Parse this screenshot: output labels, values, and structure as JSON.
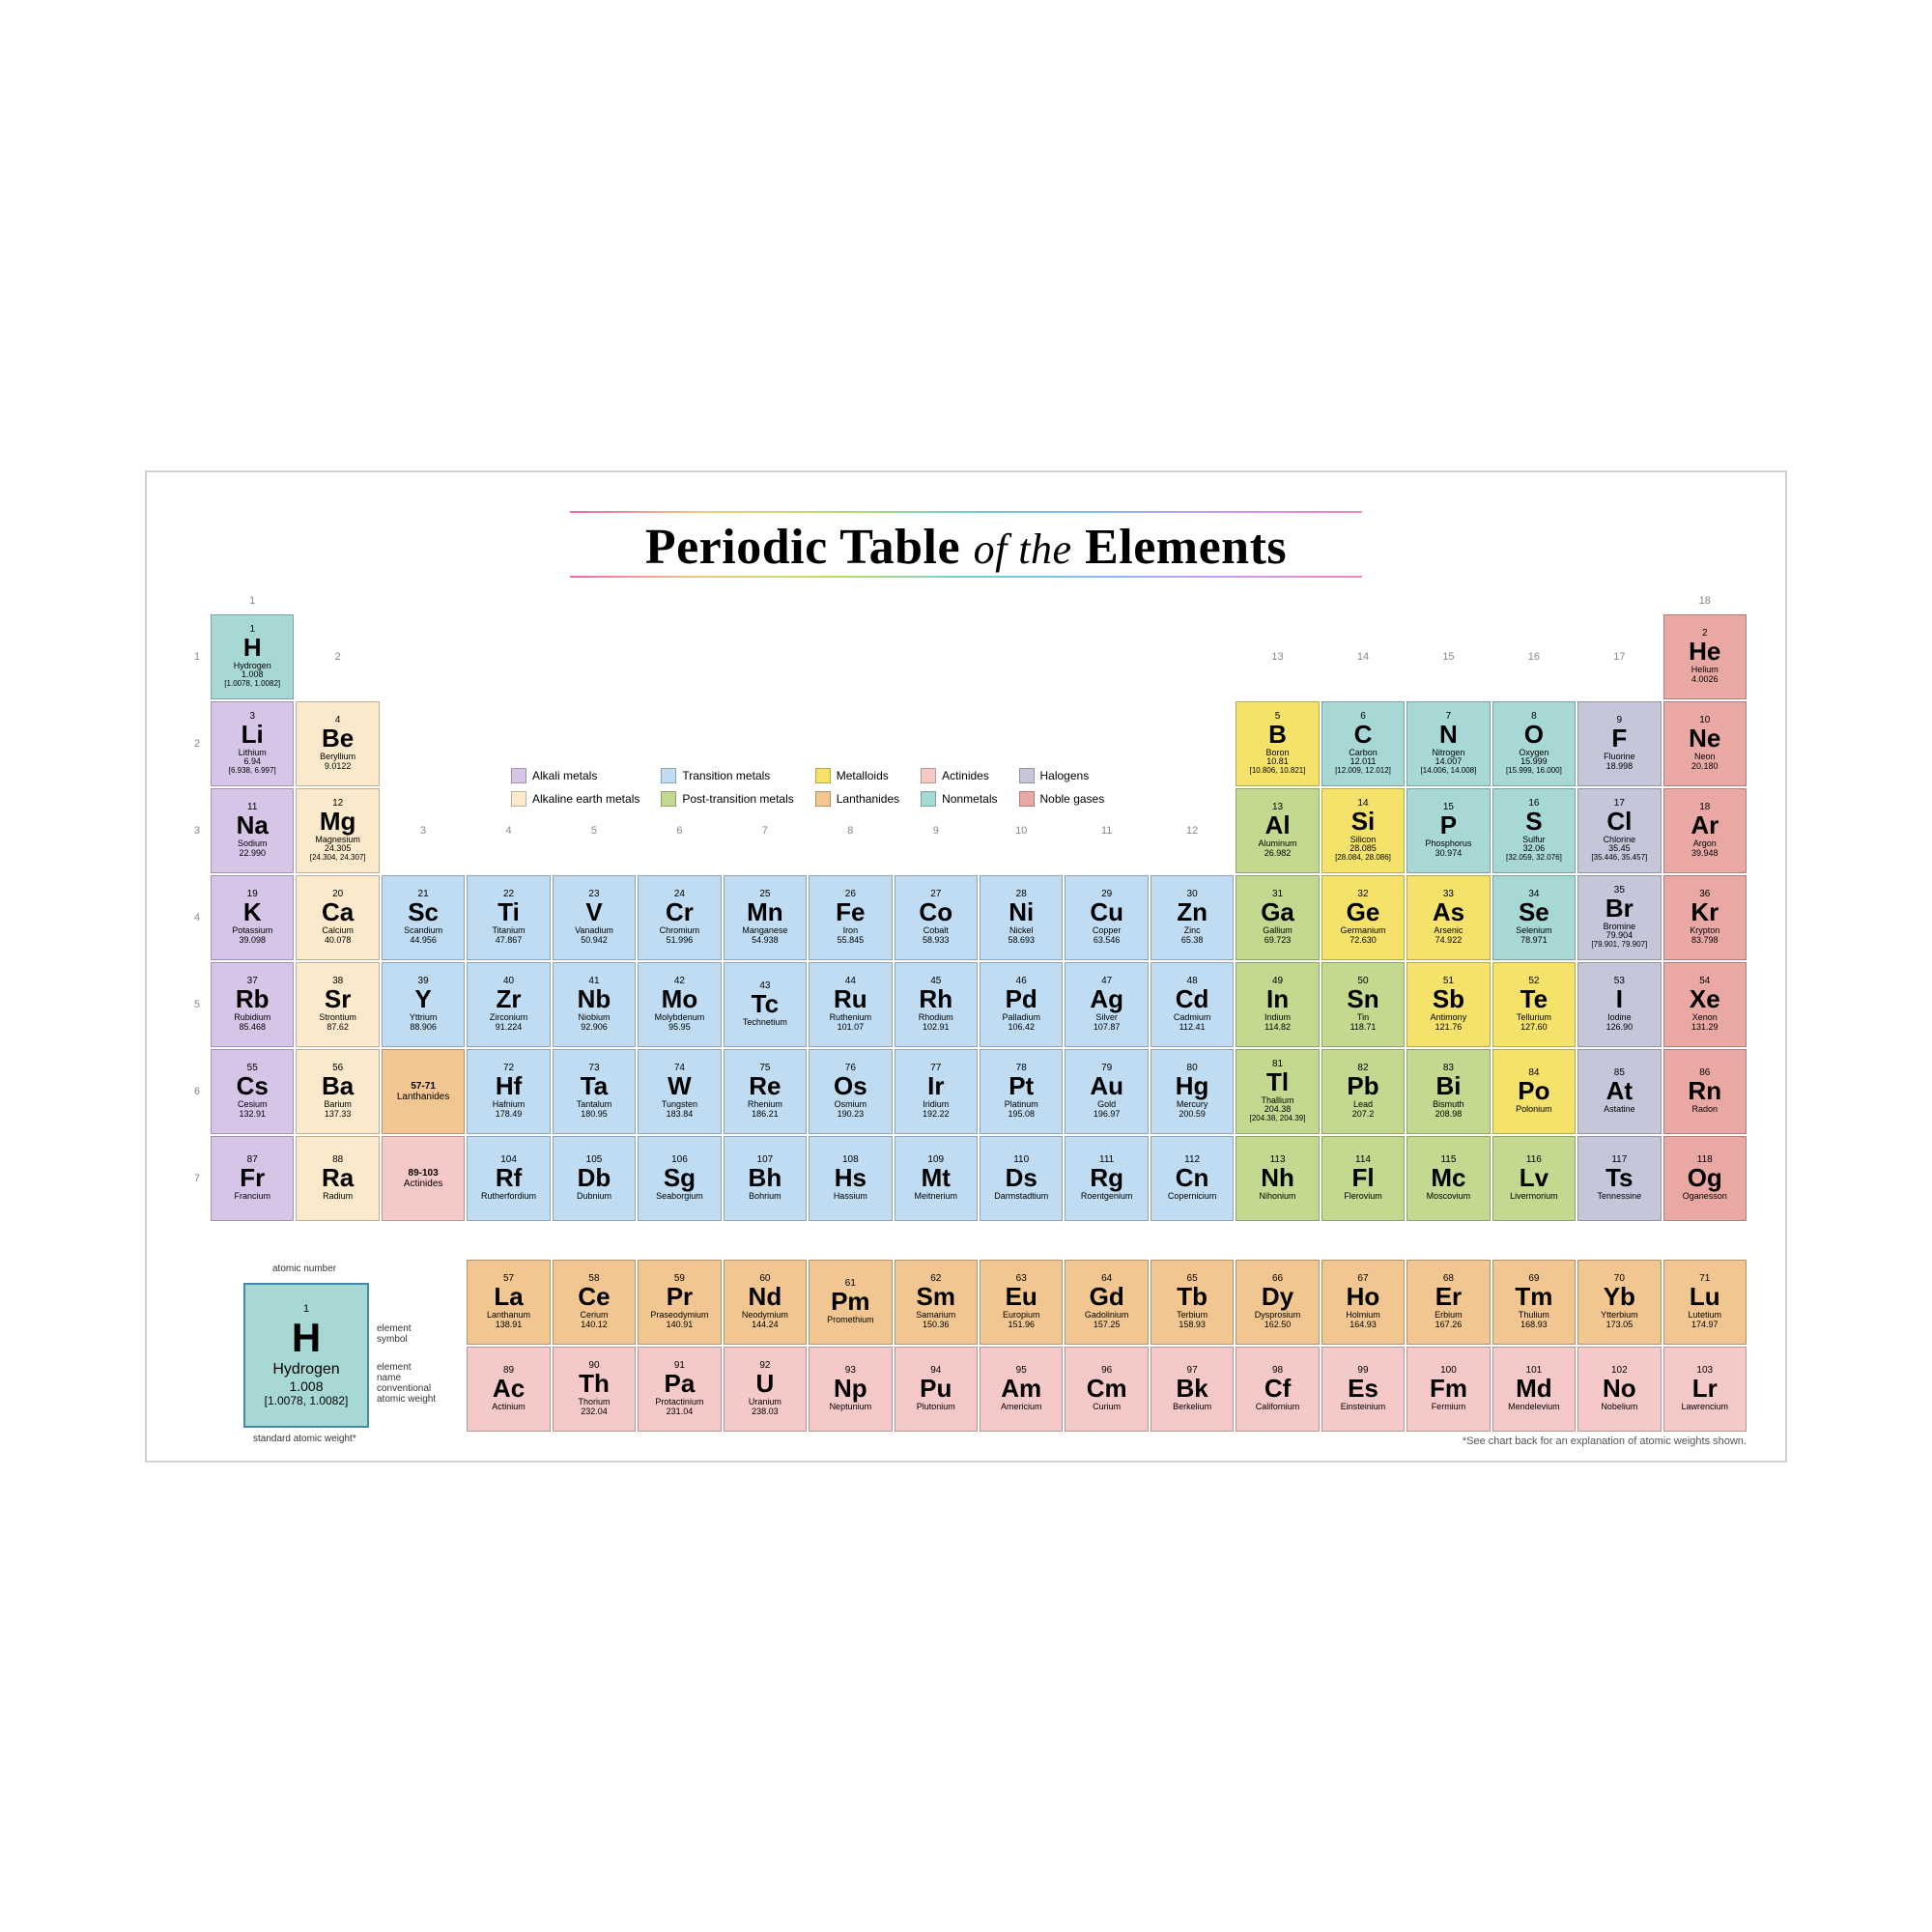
{
  "title": {
    "prefix": "Periodic Table",
    "mid": "of the",
    "suffix": "Elements"
  },
  "categories": {
    "alkali": {
      "label": "Alkali metals",
      "color": "#d7c5e8"
    },
    "alkaline": {
      "label": "Alkaline earth metals",
      "color": "#fbe9cb"
    },
    "transition": {
      "label": "Transition metals",
      "color": "#bfdcf2"
    },
    "post": {
      "label": "Post-transition metals",
      "color": "#c3d98f"
    },
    "metalloid": {
      "label": "Metalloids",
      "color": "#f5e26b"
    },
    "lanth": {
      "label": "Lanthanides",
      "color": "#f1c690"
    },
    "actin": {
      "label": "Actinides",
      "color": "#f5c9c7"
    },
    "nonmetal": {
      "label": "Nonmetals",
      "color": "#a8d8d6"
    },
    "halogen": {
      "label": "Halogens",
      "color": "#c6c6da"
    },
    "noble": {
      "label": "Noble gases",
      "color": "#eaa8a5"
    }
  },
  "legend_order": [
    "alkali",
    "transition",
    "metalloid",
    "actin",
    "halogen",
    "alkaline",
    "post",
    "lanth",
    "nonmetal",
    "noble"
  ],
  "columns": [
    1,
    2,
    3,
    4,
    5,
    6,
    7,
    8,
    9,
    10,
    11,
    12,
    13,
    14,
    15,
    16,
    17,
    18
  ],
  "rows": [
    1,
    2,
    3,
    4,
    5,
    6,
    7
  ],
  "placeholders": [
    {
      "row": 6,
      "col": 3,
      "range": "57-71",
      "label": "Lanthanides",
      "cat": "lanth"
    },
    {
      "row": 7,
      "col": 3,
      "range": "89-103",
      "label": "Actinides",
      "cat": "actin"
    }
  ],
  "key": {
    "title": "atomic number",
    "labels": {
      "num": "atomic number",
      "sym": "element symbol",
      "nm": "element name",
      "wt": "conventional atomic weight",
      "wt2": "standard atomic weight*"
    },
    "sample": {
      "num": "1",
      "sym": "H",
      "nm": "Hydrogen",
      "wt": "1.008",
      "wt2": "[1.0078, 1.0082]"
    }
  },
  "footer": "*See chart back for an explanation of atomic weights shown.",
  "elements": [
    {
      "n": 1,
      "s": "H",
      "nm": "Hydrogen",
      "w": "1.008",
      "w2": "[1.0078, 1.0082]",
      "r": 1,
      "c": 1,
      "cat": "nonmetal"
    },
    {
      "n": 2,
      "s": "He",
      "nm": "Helium",
      "w": "4.0026",
      "r": 1,
      "c": 18,
      "cat": "noble"
    },
    {
      "n": 3,
      "s": "Li",
      "nm": "Lithium",
      "w": "6.94",
      "w2": "[6.938, 6.997]",
      "r": 2,
      "c": 1,
      "cat": "alkali"
    },
    {
      "n": 4,
      "s": "Be",
      "nm": "Beryllium",
      "w": "9.0122",
      "r": 2,
      "c": 2,
      "cat": "alkaline"
    },
    {
      "n": 5,
      "s": "B",
      "nm": "Boron",
      "w": "10.81",
      "w2": "[10.806, 10.821]",
      "r": 2,
      "c": 13,
      "cat": "metalloid"
    },
    {
      "n": 6,
      "s": "C",
      "nm": "Carbon",
      "w": "12.011",
      "w2": "[12.009, 12.012]",
      "r": 2,
      "c": 14,
      "cat": "nonmetal"
    },
    {
      "n": 7,
      "s": "N",
      "nm": "Nitrogen",
      "w": "14.007",
      "w2": "[14.006, 14.008]",
      "r": 2,
      "c": 15,
      "cat": "nonmetal"
    },
    {
      "n": 8,
      "s": "O",
      "nm": "Oxygen",
      "w": "15.999",
      "w2": "[15.999, 16.000]",
      "r": 2,
      "c": 16,
      "cat": "nonmetal"
    },
    {
      "n": 9,
      "s": "F",
      "nm": "Fluorine",
      "w": "18.998",
      "r": 2,
      "c": 17,
      "cat": "halogen"
    },
    {
      "n": 10,
      "s": "Ne",
      "nm": "Neon",
      "w": "20.180",
      "r": 2,
      "c": 18,
      "cat": "noble"
    },
    {
      "n": 11,
      "s": "Na",
      "nm": "Sodium",
      "w": "22.990",
      "r": 3,
      "c": 1,
      "cat": "alkali"
    },
    {
      "n": 12,
      "s": "Mg",
      "nm": "Magnesium",
      "w": "24.305",
      "w2": "[24.304, 24.307]",
      "r": 3,
      "c": 2,
      "cat": "alkaline"
    },
    {
      "n": 13,
      "s": "Al",
      "nm": "Aluminum",
      "w": "26.982",
      "r": 3,
      "c": 13,
      "cat": "post"
    },
    {
      "n": 14,
      "s": "Si",
      "nm": "Silicon",
      "w": "28.085",
      "w2": "[28.084, 28.086]",
      "r": 3,
      "c": 14,
      "cat": "metalloid"
    },
    {
      "n": 15,
      "s": "P",
      "nm": "Phosphorus",
      "w": "30.974",
      "r": 3,
      "c": 15,
      "cat": "nonmetal"
    },
    {
      "n": 16,
      "s": "S",
      "nm": "Sulfur",
      "w": "32.06",
      "w2": "[32.059, 32.076]",
      "r": 3,
      "c": 16,
      "cat": "nonmetal"
    },
    {
      "n": 17,
      "s": "Cl",
      "nm": "Chlorine",
      "w": "35.45",
      "w2": "[35.446, 35.457]",
      "r": 3,
      "c": 17,
      "cat": "halogen"
    },
    {
      "n": 18,
      "s": "Ar",
      "nm": "Argon",
      "w": "39.948",
      "r": 3,
      "c": 18,
      "cat": "noble"
    },
    {
      "n": 19,
      "s": "K",
      "nm": "Potassium",
      "w": "39.098",
      "r": 4,
      "c": 1,
      "cat": "alkali"
    },
    {
      "n": 20,
      "s": "Ca",
      "nm": "Calcium",
      "w": "40.078",
      "r": 4,
      "c": 2,
      "cat": "alkaline"
    },
    {
      "n": 21,
      "s": "Sc",
      "nm": "Scandium",
      "w": "44.956",
      "r": 4,
      "c": 3,
      "cat": "transition"
    },
    {
      "n": 22,
      "s": "Ti",
      "nm": "Titanium",
      "w": "47.867",
      "r": 4,
      "c": 4,
      "cat": "transition"
    },
    {
      "n": 23,
      "s": "V",
      "nm": "Vanadium",
      "w": "50.942",
      "r": 4,
      "c": 5,
      "cat": "transition"
    },
    {
      "n": 24,
      "s": "Cr",
      "nm": "Chromium",
      "w": "51.996",
      "r": 4,
      "c": 6,
      "cat": "transition"
    },
    {
      "n": 25,
      "s": "Mn",
      "nm": "Manganese",
      "w": "54.938",
      "r": 4,
      "c": 7,
      "cat": "transition"
    },
    {
      "n": 26,
      "s": "Fe",
      "nm": "Iron",
      "w": "55.845",
      "r": 4,
      "c": 8,
      "cat": "transition"
    },
    {
      "n": 27,
      "s": "Co",
      "nm": "Cobalt",
      "w": "58.933",
      "r": 4,
      "c": 9,
      "cat": "transition"
    },
    {
      "n": 28,
      "s": "Ni",
      "nm": "Nickel",
      "w": "58.693",
      "r": 4,
      "c": 10,
      "cat": "transition"
    },
    {
      "n": 29,
      "s": "Cu",
      "nm": "Copper",
      "w": "63.546",
      "r": 4,
      "c": 11,
      "cat": "transition"
    },
    {
      "n": 30,
      "s": "Zn",
      "nm": "Zinc",
      "w": "65.38",
      "r": 4,
      "c": 12,
      "cat": "transition"
    },
    {
      "n": 31,
      "s": "Ga",
      "nm": "Gallium",
      "w": "69.723",
      "r": 4,
      "c": 13,
      "cat": "post"
    },
    {
      "n": 32,
      "s": "Ge",
      "nm": "Germanium",
      "w": "72.630",
      "r": 4,
      "c": 14,
      "cat": "metalloid"
    },
    {
      "n": 33,
      "s": "As",
      "nm": "Arsenic",
      "w": "74.922",
      "r": 4,
      "c": 15,
      "cat": "metalloid"
    },
    {
      "n": 34,
      "s": "Se",
      "nm": "Selenium",
      "w": "78.971",
      "r": 4,
      "c": 16,
      "cat": "nonmetal"
    },
    {
      "n": 35,
      "s": "Br",
      "nm": "Bromine",
      "w": "79.904",
      "w2": "[79.901, 79.907]",
      "r": 4,
      "c": 17,
      "cat": "halogen"
    },
    {
      "n": 36,
      "s": "Kr",
      "nm": "Krypton",
      "w": "83.798",
      "r": 4,
      "c": 18,
      "cat": "noble"
    },
    {
      "n": 37,
      "s": "Rb",
      "nm": "Rubidium",
      "w": "85.468",
      "r": 5,
      "c": 1,
      "cat": "alkali"
    },
    {
      "n": 38,
      "s": "Sr",
      "nm": "Strontium",
      "w": "87.62",
      "r": 5,
      "c": 2,
      "cat": "alkaline"
    },
    {
      "n": 39,
      "s": "Y",
      "nm": "Yttrium",
      "w": "88.906",
      "r": 5,
      "c": 3,
      "cat": "transition"
    },
    {
      "n": 40,
      "s": "Zr",
      "nm": "Zirconium",
      "w": "91.224",
      "r": 5,
      "c": 4,
      "cat": "transition"
    },
    {
      "n": 41,
      "s": "Nb",
      "nm": "Niobium",
      "w": "92.906",
      "r": 5,
      "c": 5,
      "cat": "transition"
    },
    {
      "n": 42,
      "s": "Mo",
      "nm": "Molybdenum",
      "w": "95.95",
      "r": 5,
      "c": 6,
      "cat": "transition"
    },
    {
      "n": 43,
      "s": "Tc",
      "nm": "Technetium",
      "w": "",
      "r": 5,
      "c": 7,
      "cat": "transition"
    },
    {
      "n": 44,
      "s": "Ru",
      "nm": "Ruthenium",
      "w": "101.07",
      "r": 5,
      "c": 8,
      "cat": "transition"
    },
    {
      "n": 45,
      "s": "Rh",
      "nm": "Rhodium",
      "w": "102.91",
      "r": 5,
      "c": 9,
      "cat": "transition"
    },
    {
      "n": 46,
      "s": "Pd",
      "nm": "Palladium",
      "w": "106.42",
      "r": 5,
      "c": 10,
      "cat": "transition"
    },
    {
      "n": 47,
      "s": "Ag",
      "nm": "Silver",
      "w": "107.87",
      "r": 5,
      "c": 11,
      "cat": "transition"
    },
    {
      "n": 48,
      "s": "Cd",
      "nm": "Cadmium",
      "w": "112.41",
      "r": 5,
      "c": 12,
      "cat": "transition"
    },
    {
      "n": 49,
      "s": "In",
      "nm": "Indium",
      "w": "114.82",
      "r": 5,
      "c": 13,
      "cat": "post"
    },
    {
      "n": 50,
      "s": "Sn",
      "nm": "Tin",
      "w": "118.71",
      "r": 5,
      "c": 14,
      "cat": "post"
    },
    {
      "n": 51,
      "s": "Sb",
      "nm": "Antimony",
      "w": "121.76",
      "r": 5,
      "c": 15,
      "cat": "metalloid"
    },
    {
      "n": 52,
      "s": "Te",
      "nm": "Tellurium",
      "w": "127.60",
      "r": 5,
      "c": 16,
      "cat": "metalloid"
    },
    {
      "n": 53,
      "s": "I",
      "nm": "Iodine",
      "w": "126.90",
      "r": 5,
      "c": 17,
      "cat": "halogen"
    },
    {
      "n": 54,
      "s": "Xe",
      "nm": "Xenon",
      "w": "131.29",
      "r": 5,
      "c": 18,
      "cat": "noble"
    },
    {
      "n": 55,
      "s": "Cs",
      "nm": "Cesium",
      "w": "132.91",
      "r": 6,
      "c": 1,
      "cat": "alkali"
    },
    {
      "n": 56,
      "s": "Ba",
      "nm": "Barium",
      "w": "137.33",
      "r": 6,
      "c": 2,
      "cat": "alkaline"
    },
    {
      "n": 72,
      "s": "Hf",
      "nm": "Hafnium",
      "w": "178.49",
      "r": 6,
      "c": 4,
      "cat": "transition"
    },
    {
      "n": 73,
      "s": "Ta",
      "nm": "Tantalum",
      "w": "180.95",
      "r": 6,
      "c": 5,
      "cat": "transition"
    },
    {
      "n": 74,
      "s": "W",
      "nm": "Tungsten",
      "w": "183.84",
      "r": 6,
      "c": 6,
      "cat": "transition"
    },
    {
      "n": 75,
      "s": "Re",
      "nm": "Rhenium",
      "w": "186.21",
      "r": 6,
      "c": 7,
      "cat": "transition"
    },
    {
      "n": 76,
      "s": "Os",
      "nm": "Osmium",
      "w": "190.23",
      "r": 6,
      "c": 8,
      "cat": "transition"
    },
    {
      "n": 77,
      "s": "Ir",
      "nm": "Iridium",
      "w": "192.22",
      "r": 6,
      "c": 9,
      "cat": "transition"
    },
    {
      "n": 78,
      "s": "Pt",
      "nm": "Platinum",
      "w": "195.08",
      "r": 6,
      "c": 10,
      "cat": "transition"
    },
    {
      "n": 79,
      "s": "Au",
      "nm": "Gold",
      "w": "196.97",
      "r": 6,
      "c": 11,
      "cat": "transition"
    },
    {
      "n": 80,
      "s": "Hg",
      "nm": "Mercury",
      "w": "200.59",
      "r": 6,
      "c": 12,
      "cat": "transition"
    },
    {
      "n": 81,
      "s": "Tl",
      "nm": "Thallium",
      "w": "204.38",
      "w2": "[204.38, 204.39]",
      "r": 6,
      "c": 13,
      "cat": "post"
    },
    {
      "n": 82,
      "s": "Pb",
      "nm": "Lead",
      "w": "207.2",
      "r": 6,
      "c": 14,
      "cat": "post"
    },
    {
      "n": 83,
      "s": "Bi",
      "nm": "Bismuth",
      "w": "208.98",
      "r": 6,
      "c": 15,
      "cat": "post"
    },
    {
      "n": 84,
      "s": "Po",
      "nm": "Polonium",
      "w": "",
      "r": 6,
      "c": 16,
      "cat": "metalloid"
    },
    {
      "n": 85,
      "s": "At",
      "nm": "Astatine",
      "w": "",
      "r": 6,
      "c": 17,
      "cat": "halogen"
    },
    {
      "n": 86,
      "s": "Rn",
      "nm": "Radon",
      "w": "",
      "r": 6,
      "c": 18,
      "cat": "noble"
    },
    {
      "n": 87,
      "s": "Fr",
      "nm": "Francium",
      "w": "",
      "r": 7,
      "c": 1,
      "cat": "alkali"
    },
    {
      "n": 88,
      "s": "Ra",
      "nm": "Radium",
      "w": "",
      "r": 7,
      "c": 2,
      "cat": "alkaline"
    },
    {
      "n": 104,
      "s": "Rf",
      "nm": "Rutherfordium",
      "w": "",
      "r": 7,
      "c": 4,
      "cat": "transition"
    },
    {
      "n": 105,
      "s": "Db",
      "nm": "Dubnium",
      "w": "",
      "r": 7,
      "c": 5,
      "cat": "transition"
    },
    {
      "n": 106,
      "s": "Sg",
      "nm": "Seaborgium",
      "w": "",
      "r": 7,
      "c": 6,
      "cat": "transition"
    },
    {
      "n": 107,
      "s": "Bh",
      "nm": "Bohrium",
      "w": "",
      "r": 7,
      "c": 7,
      "cat": "transition"
    },
    {
      "n": 108,
      "s": "Hs",
      "nm": "Hassium",
      "w": "",
      "r": 7,
      "c": 8,
      "cat": "transition"
    },
    {
      "n": 109,
      "s": "Mt",
      "nm": "Meitnerium",
      "w": "",
      "r": 7,
      "c": 9,
      "cat": "transition"
    },
    {
      "n": 110,
      "s": "Ds",
      "nm": "Darmstadtium",
      "w": "",
      "r": 7,
      "c": 10,
      "cat": "transition"
    },
    {
      "n": 111,
      "s": "Rg",
      "nm": "Roentgenium",
      "w": "",
      "r": 7,
      "c": 11,
      "cat": "transition"
    },
    {
      "n": 112,
      "s": "Cn",
      "nm": "Copernicium",
      "w": "",
      "r": 7,
      "c": 12,
      "cat": "transition"
    },
    {
      "n": 113,
      "s": "Nh",
      "nm": "Nihonium",
      "w": "",
      "r": 7,
      "c": 13,
      "cat": "post"
    },
    {
      "n": 114,
      "s": "Fl",
      "nm": "Flerovium",
      "w": "",
      "r": 7,
      "c": 14,
      "cat": "post"
    },
    {
      "n": 115,
      "s": "Mc",
      "nm": "Moscovium",
      "w": "",
      "r": 7,
      "c": 15,
      "cat": "post"
    },
    {
      "n": 116,
      "s": "Lv",
      "nm": "Livermorium",
      "w": "",
      "r": 7,
      "c": 16,
      "cat": "post"
    },
    {
      "n": 117,
      "s": "Ts",
      "nm": "Tennessine",
      "w": "",
      "r": 7,
      "c": 17,
      "cat": "halogen"
    },
    {
      "n": 118,
      "s": "Og",
      "nm": "Oganesson",
      "w": "",
      "r": 7,
      "c": 18,
      "cat": "noble"
    },
    {
      "n": 57,
      "s": "La",
      "nm": "Lanthanum",
      "w": "138.91",
      "r": 9,
      "c": 4,
      "cat": "lanth"
    },
    {
      "n": 58,
      "s": "Ce",
      "nm": "Cerium",
      "w": "140.12",
      "r": 9,
      "c": 5,
      "cat": "lanth"
    },
    {
      "n": 59,
      "s": "Pr",
      "nm": "Praseodymium",
      "w": "140.91",
      "r": 9,
      "c": 6,
      "cat": "lanth"
    },
    {
      "n": 60,
      "s": "Nd",
      "nm": "Neodymium",
      "w": "144.24",
      "r": 9,
      "c": 7,
      "cat": "lanth"
    },
    {
      "n": 61,
      "s": "Pm",
      "nm": "Promethium",
      "w": "",
      "r": 9,
      "c": 8,
      "cat": "lanth"
    },
    {
      "n": 62,
      "s": "Sm",
      "nm": "Samarium",
      "w": "150.36",
      "r": 9,
      "c": 9,
      "cat": "lanth"
    },
    {
      "n": 63,
      "s": "Eu",
      "nm": "Europium",
      "w": "151.96",
      "r": 9,
      "c": 10,
      "cat": "lanth"
    },
    {
      "n": 64,
      "s": "Gd",
      "nm": "Gadolinium",
      "w": "157.25",
      "r": 9,
      "c": 11,
      "cat": "lanth"
    },
    {
      "n": 65,
      "s": "Tb",
      "nm": "Terbium",
      "w": "158.93",
      "r": 9,
      "c": 12,
      "cat": "lanth"
    },
    {
      "n": 66,
      "s": "Dy",
      "nm": "Dysprosium",
      "w": "162.50",
      "r": 9,
      "c": 13,
      "cat": "lanth"
    },
    {
      "n": 67,
      "s": "Ho",
      "nm": "Holmium",
      "w": "164.93",
      "r": 9,
      "c": 14,
      "cat": "lanth"
    },
    {
      "n": 68,
      "s": "Er",
      "nm": "Erbium",
      "w": "167.26",
      "r": 9,
      "c": 15,
      "cat": "lanth"
    },
    {
      "n": 69,
      "s": "Tm",
      "nm": "Thulium",
      "w": "168.93",
      "r": 9,
      "c": 16,
      "cat": "lanth"
    },
    {
      "n": 70,
      "s": "Yb",
      "nm": "Ytterbium",
      "w": "173.05",
      "r": 9,
      "c": 17,
      "cat": "lanth"
    },
    {
      "n": 71,
      "s": "Lu",
      "nm": "Lutetium",
      "w": "174.97",
      "r": 9,
      "c": 18,
      "cat": "lanth"
    },
    {
      "n": 89,
      "s": "Ac",
      "nm": "Actinium",
      "w": "",
      "r": 10,
      "c": 4,
      "cat": "actin"
    },
    {
      "n": 90,
      "s": "Th",
      "nm": "Thorium",
      "w": "232.04",
      "r": 10,
      "c": 5,
      "cat": "actin"
    },
    {
      "n": 91,
      "s": "Pa",
      "nm": "Protactinium",
      "w": "231.04",
      "r": 10,
      "c": 6,
      "cat": "actin"
    },
    {
      "n": 92,
      "s": "U",
      "nm": "Uranium",
      "w": "238.03",
      "r": 10,
      "c": 7,
      "cat": "actin"
    },
    {
      "n": 93,
      "s": "Np",
      "nm": "Neptunium",
      "w": "",
      "r": 10,
      "c": 8,
      "cat": "actin"
    },
    {
      "n": 94,
      "s": "Pu",
      "nm": "Plutonium",
      "w": "",
      "r": 10,
      "c": 9,
      "cat": "actin"
    },
    {
      "n": 95,
      "s": "Am",
      "nm": "Americium",
      "w": "",
      "r": 10,
      "c": 10,
      "cat": "actin"
    },
    {
      "n": 96,
      "s": "Cm",
      "nm": "Curium",
      "w": "",
      "r": 10,
      "c": 11,
      "cat": "actin"
    },
    {
      "n": 97,
      "s": "Bk",
      "nm": "Berkelium",
      "w": "",
      "r": 10,
      "c": 12,
      "cat": "actin"
    },
    {
      "n": 98,
      "s": "Cf",
      "nm": "Californium",
      "w": "",
      "r": 10,
      "c": 13,
      "cat": "actin"
    },
    {
      "n": 99,
      "s": "Es",
      "nm": "Einsteinium",
      "w": "",
      "r": 10,
      "c": 14,
      "cat": "actin"
    },
    {
      "n": 100,
      "s": "Fm",
      "nm": "Fermium",
      "w": "",
      "r": 10,
      "c": 15,
      "cat": "actin"
    },
    {
      "n": 101,
      "s": "Md",
      "nm": "Mendelevium",
      "w": "",
      "r": 10,
      "c": 16,
      "cat": "actin"
    },
    {
      "n": 102,
      "s": "No",
      "nm": "Nobelium",
      "w": "",
      "r": 10,
      "c": 17,
      "cat": "actin"
    },
    {
      "n": 103,
      "s": "Lr",
      "nm": "Lawrencium",
      "w": "",
      "r": 10,
      "c": 18,
      "cat": "actin"
    }
  ]
}
